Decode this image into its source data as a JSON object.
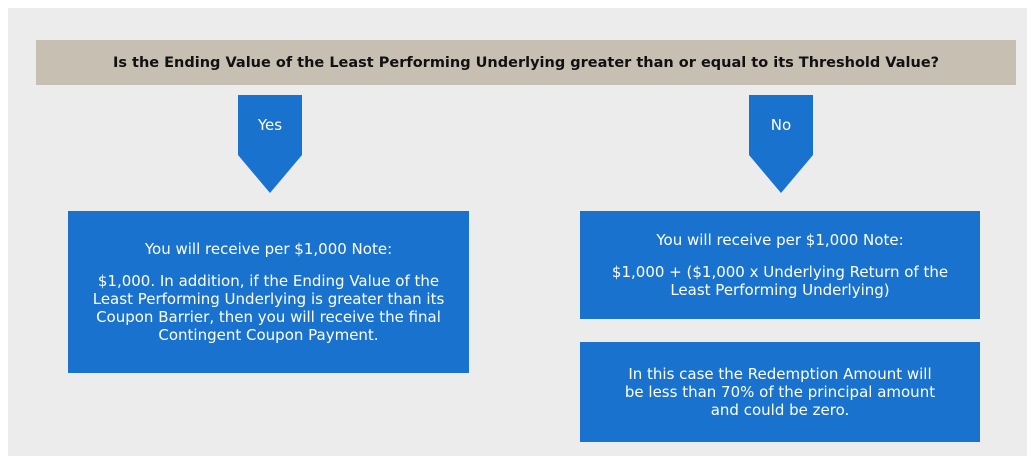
{
  "question": "Is the Ending Value of the Least Performing Underlying greater than or equal to its Threshold Value?",
  "yes": {
    "label": "Yes",
    "heading": "You will receive per $1,000 Note:",
    "text": "$1,000. In addition, if the Ending Value of the Least Performing Underlying is greater than its Coupon Barrier, then you will receive the final Contingent Coupon Payment."
  },
  "no": {
    "label": "No",
    "heading": "You will receive per $1,000 Note:",
    "text": "$1,000 + ($1,000 x Underlying Return of the Least Performing Underlying)",
    "note": "In this case the Redemption Amount will be less than 70% of the principal amount and could be zero."
  }
}
